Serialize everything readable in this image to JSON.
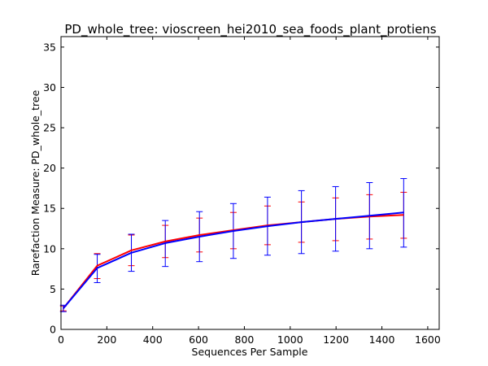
{
  "chart_data": {
    "type": "line",
    "title": "PD_whole_tree: vioscreen_hei2010_sea_foods_plant_protiens",
    "xlabel": "Sequences Per Sample",
    "ylabel": "Rarefaction Measure: PD_whole_tree",
    "xlim": [
      0,
      1650
    ],
    "ylim": [
      0,
      36.3
    ],
    "xticks": [
      0,
      200,
      400,
      600,
      800,
      1000,
      1200,
      1400,
      1600
    ],
    "yticks": [
      0,
      5,
      10,
      15,
      20,
      25,
      30,
      35
    ],
    "grid": false,
    "x": [
      10,
      158,
      307,
      455,
      604,
      752,
      901,
      1049,
      1198,
      1346,
      1495
    ],
    "series": [
      {
        "color": "#ff0000",
        "values": [
          2.6,
          7.9,
          9.8,
          10.9,
          11.7,
          12.3,
          12.9,
          13.3,
          13.7,
          14.0,
          14.2
        ],
        "err_low": [
          2.3,
          6.3,
          7.9,
          8.9,
          9.6,
          10.0,
          10.5,
          10.8,
          11.0,
          11.2,
          11.3
        ],
        "err_high": [
          2.9,
          9.4,
          11.7,
          12.9,
          13.8,
          14.5,
          15.3,
          15.8,
          16.3,
          16.7,
          17.0
        ]
      },
      {
        "color": "#0000ff",
        "values": [
          2.6,
          7.6,
          9.5,
          10.7,
          11.5,
          12.2,
          12.8,
          13.3,
          13.7,
          14.1,
          14.5
        ],
        "err_low": [
          2.2,
          5.8,
          7.2,
          7.8,
          8.4,
          8.8,
          9.2,
          9.4,
          9.7,
          10.0,
          10.2
        ],
        "err_high": [
          3.0,
          9.3,
          11.8,
          13.5,
          14.6,
          15.6,
          16.4,
          17.2,
          17.7,
          18.2,
          18.7
        ]
      }
    ]
  }
}
